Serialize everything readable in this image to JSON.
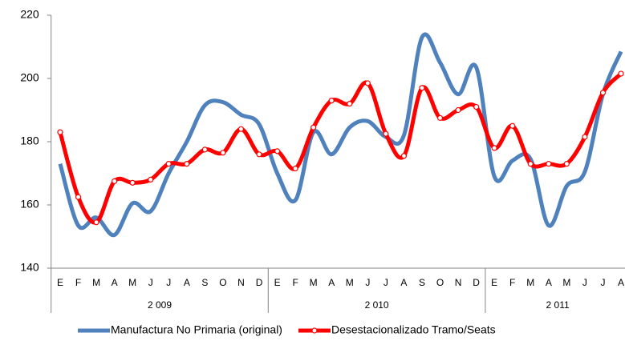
{
  "chart_data": {
    "type": "line",
    "categories": [
      "E",
      "F",
      "M",
      "A",
      "M",
      "J",
      "J",
      "A",
      "S",
      "O",
      "N",
      "D",
      "E",
      "F",
      "M",
      "A",
      "M",
      "J",
      "J",
      "A",
      "S",
      "O",
      "N",
      "D",
      "E",
      "F",
      "M",
      "A",
      "M",
      "J",
      "J",
      "A"
    ],
    "groups": [
      {
        "label": "2 009",
        "span": 12
      },
      {
        "label": "2 010",
        "span": 12
      },
      {
        "label": "2 011",
        "span": 8
      }
    ],
    "series": [
      {
        "name": "Manufactura No Primaria (original)",
        "color": "#4f81bd",
        "markers": false,
        "values": [
          173,
          153.5,
          156,
          150.5,
          160.5,
          158,
          170,
          180,
          191.5,
          192.5,
          188.5,
          185.5,
          170,
          161.5,
          183,
          176,
          184.5,
          186.5,
          181.5,
          182,
          213,
          205,
          195,
          203.5,
          169,
          174,
          174.5,
          153.5,
          166,
          170.5,
          195,
          208.5
        ]
      },
      {
        "name": "Desestacionalizado Tramo/Seats",
        "color": "#ff0000",
        "markers": true,
        "values": [
          183,
          162.5,
          154.5,
          167.5,
          167,
          168,
          173,
          173,
          177.5,
          176.5,
          184,
          176,
          177,
          171.5,
          184.5,
          193,
          192,
          198.5,
          182.5,
          175.5,
          197,
          187.5,
          190,
          191,
          178,
          185,
          173,
          173,
          173,
          181.5,
          195.5,
          201.5
        ]
      }
    ],
    "ylim": [
      140,
      220
    ],
    "yticks": [
      140,
      160,
      180,
      200,
      220
    ],
    "grid": false,
    "legend": "bottom"
  }
}
